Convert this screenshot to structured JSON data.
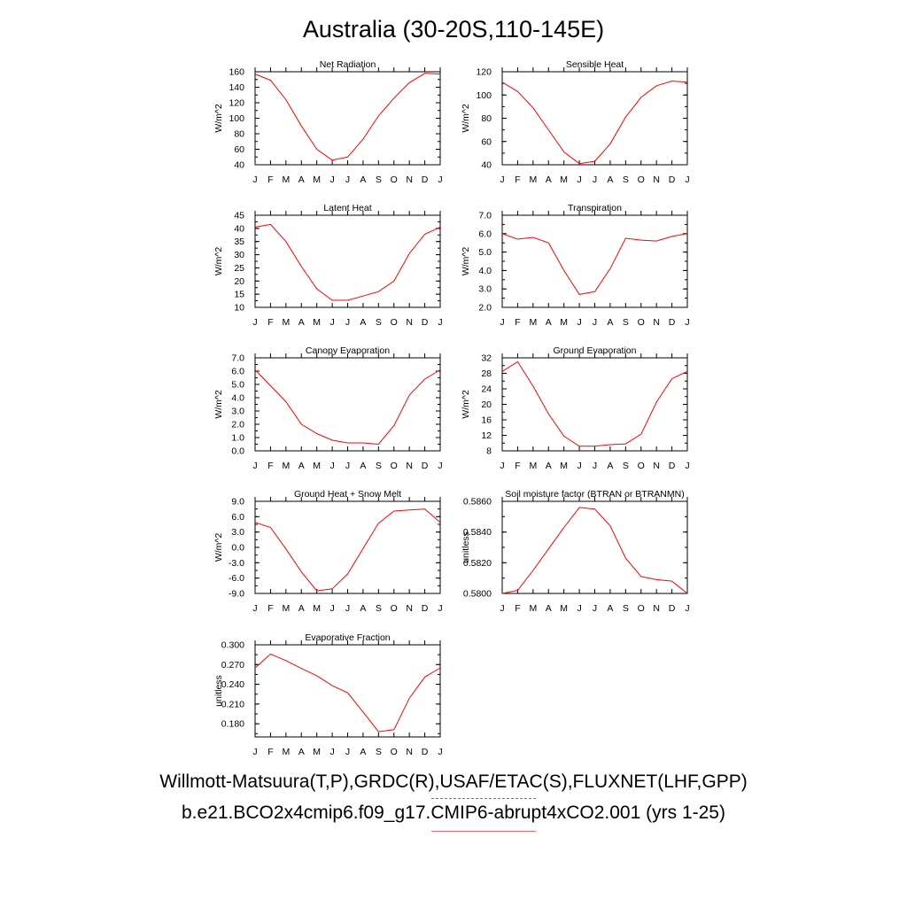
{
  "page": {
    "title": "Australia (30-20S,110-145E)"
  },
  "legend": {
    "observations": "Willmott-Matsuura(T,P),GRDC(R),USAF/ETAC(S),FLUXNET(LHF,GPP)",
    "case": "b.e21.BCO2x4cmip6.f09_g17.CMIP6-abrupt4xCO2.001 (yrs 1-25)",
    "observations_color": "#6666ff",
    "case_color": "#ff0000"
  },
  "chart_data": [
    {
      "type": "line",
      "title": "Net Radiation",
      "ylabel": "W/m^2",
      "categories": [
        "J",
        "F",
        "M",
        "A",
        "M",
        "J",
        "J",
        "A",
        "S",
        "O",
        "N",
        "D",
        "J"
      ],
      "ylim": [
        40,
        160
      ],
      "yticks": [
        "40",
        "60",
        "80",
        "100",
        "120",
        "140",
        "160"
      ],
      "series": [
        {
          "values": [
            157,
            149,
            124,
            90,
            60,
            46,
            50,
            73,
            103,
            126,
            146,
            158,
            157
          ]
        }
      ]
    },
    {
      "type": "line",
      "title": "Sensible Heat",
      "ylabel": "W/m^2",
      "categories": [
        "J",
        "F",
        "M",
        "A",
        "M",
        "J",
        "J",
        "A",
        "S",
        "O",
        "N",
        "D",
        "J"
      ],
      "ylim": [
        40,
        120
      ],
      "yticks": [
        "40",
        "60",
        "80",
        "100",
        "120"
      ],
      "series": [
        {
          "values": [
            111,
            103,
            89,
            70,
            51,
            41,
            43,
            58,
            81,
            98,
            108,
            112,
            111
          ]
        }
      ]
    },
    {
      "type": "line",
      "title": "Latent Heat",
      "ylabel": "W/m^2",
      "categories": [
        "J",
        "F",
        "M",
        "A",
        "M",
        "J",
        "J",
        "A",
        "S",
        "O",
        "N",
        "D",
        "J"
      ],
      "ylim": [
        10,
        45
      ],
      "yticks": [
        "10",
        "15",
        "20",
        "25",
        "30",
        "35",
        "40",
        "45"
      ],
      "series": [
        {
          "values": [
            40.5,
            41.5,
            35,
            25.5,
            17,
            12.7,
            12.7,
            14.3,
            16,
            20,
            30.5,
            37.8,
            40.5
          ]
        }
      ]
    },
    {
      "type": "line",
      "title": "Transpiration",
      "ylabel": "W/m^2",
      "categories": [
        "J",
        "F",
        "M",
        "A",
        "M",
        "J",
        "J",
        "A",
        "S",
        "O",
        "N",
        "D",
        "J"
      ],
      "ylim": [
        2.0,
        7.0
      ],
      "yticks": [
        "2.0",
        "3.0",
        "4.0",
        "5.0",
        "6.0",
        "7.0"
      ],
      "series": [
        {
          "values": [
            6.0,
            5.7,
            5.8,
            5.5,
            4.0,
            2.7,
            2.85,
            4.1,
            5.75,
            5.65,
            5.6,
            5.85,
            6.0
          ]
        }
      ]
    },
    {
      "type": "line",
      "title": "Canopy Evaporation",
      "ylabel": "W/m^2",
      "categories": [
        "J",
        "F",
        "M",
        "A",
        "M",
        "J",
        "J",
        "A",
        "S",
        "O",
        "N",
        "D",
        "J"
      ],
      "ylim": [
        0.0,
        7.0
      ],
      "yticks": [
        "0.0",
        "1.0",
        "2.0",
        "3.0",
        "4.0",
        "5.0",
        "6.0",
        "7.0"
      ],
      "series": [
        {
          "values": [
            6.1,
            4.9,
            3.7,
            2.0,
            1.3,
            0.8,
            0.6,
            0.6,
            0.5,
            1.9,
            4.2,
            5.4,
            6.1
          ]
        }
      ]
    },
    {
      "type": "line",
      "title": "Ground Evaporation",
      "ylabel": "W/m^2",
      "categories": [
        "J",
        "F",
        "M",
        "A",
        "M",
        "J",
        "J",
        "A",
        "S",
        "O",
        "N",
        "D",
        "J"
      ],
      "ylim": [
        8,
        32
      ],
      "yticks": [
        "8",
        "12",
        "16",
        "20",
        "24",
        "28",
        "32"
      ],
      "series": [
        {
          "values": [
            28.5,
            31,
            24.7,
            17.5,
            11.8,
            9.2,
            9.2,
            9.6,
            9.8,
            12.3,
            20.6,
            26.6,
            28.5
          ]
        }
      ]
    },
    {
      "type": "line",
      "title": "Ground Heat + Snow Melt",
      "ylabel": "W/m^2",
      "categories": [
        "J",
        "F",
        "M",
        "A",
        "M",
        "J",
        "J",
        "A",
        "S",
        "O",
        "N",
        "D",
        "J"
      ],
      "ylim": [
        -9.0,
        9.0
      ],
      "yticks": [
        "-9.0",
        "-6.0",
        "-3.0",
        "0.0",
        "3.0",
        "6.0",
        "9.0"
      ],
      "series": [
        {
          "values": [
            4.9,
            3.9,
            -0.3,
            -4.8,
            -8.5,
            -8.1,
            -5.2,
            -0.2,
            4.7,
            7.1,
            7.3,
            7.5,
            4.9
          ]
        }
      ]
    },
    {
      "type": "line",
      "title": "Soil moisture factor (BTRAN or BTRANMN)",
      "ylabel": "unitless",
      "categories": [
        "J",
        "F",
        "M",
        "A",
        "M",
        "J",
        "J",
        "A",
        "S",
        "O",
        "N",
        "D",
        "J"
      ],
      "ylim": [
        0.58,
        0.586
      ],
      "yticks": [
        "0.5800",
        "0.5820",
        "0.5840",
        "0.5860"
      ],
      "series": [
        {
          "values": [
            0.58,
            0.5802,
            0.5815,
            0.5829,
            0.5843,
            0.5856,
            0.5855,
            0.5844,
            0.5823,
            0.5811,
            0.5809,
            0.5808,
            0.58
          ]
        }
      ]
    },
    {
      "type": "line",
      "title": "Evaporative Fraction",
      "ylabel": "unitless",
      "categories": [
        "J",
        "F",
        "M",
        "A",
        "M",
        "J",
        "J",
        "A",
        "S",
        "O",
        "N",
        "D",
        "J"
      ],
      "ylim": [
        0.16,
        0.3
      ],
      "yticks": [
        "0.180",
        "0.210",
        "0.240",
        "0.270",
        "0.300"
      ],
      "series": [
        {
          "values": [
            0.265,
            0.286,
            0.276,
            0.264,
            0.253,
            0.238,
            0.227,
            0.198,
            0.168,
            0.171,
            0.219,
            0.251,
            0.265
          ]
        }
      ]
    }
  ]
}
